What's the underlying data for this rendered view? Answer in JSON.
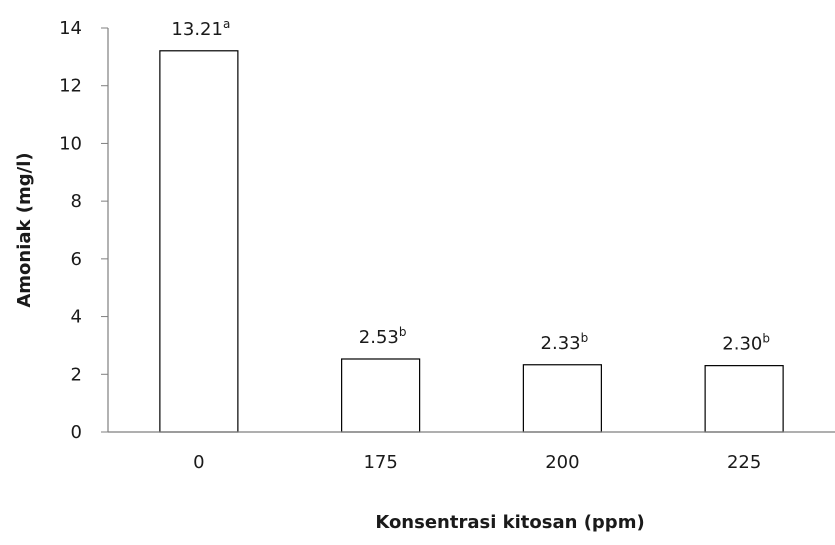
{
  "chart_data": {
    "type": "bar",
    "title": "",
    "xlabel": "Konsentrasi kitosan (ppm)",
    "ylabel": "Amoniak (mg/l)",
    "categories": [
      "0",
      "175",
      "200",
      "225"
    ],
    "values": [
      13.21,
      2.53,
      2.33,
      2.3
    ],
    "value_labels": [
      "13.21",
      "2.53",
      "2.33",
      "2.30"
    ],
    "significance_letters": [
      "a",
      "b",
      "b",
      "b"
    ],
    "ylim": [
      0,
      14
    ],
    "yticks": [
      0,
      2,
      4,
      6,
      8,
      10,
      12,
      14
    ],
    "grid": false,
    "legend": "none",
    "bar_fill": "#ffffff",
    "bar_stroke": "#000000",
    "axis_color": "#7f7f7f"
  }
}
